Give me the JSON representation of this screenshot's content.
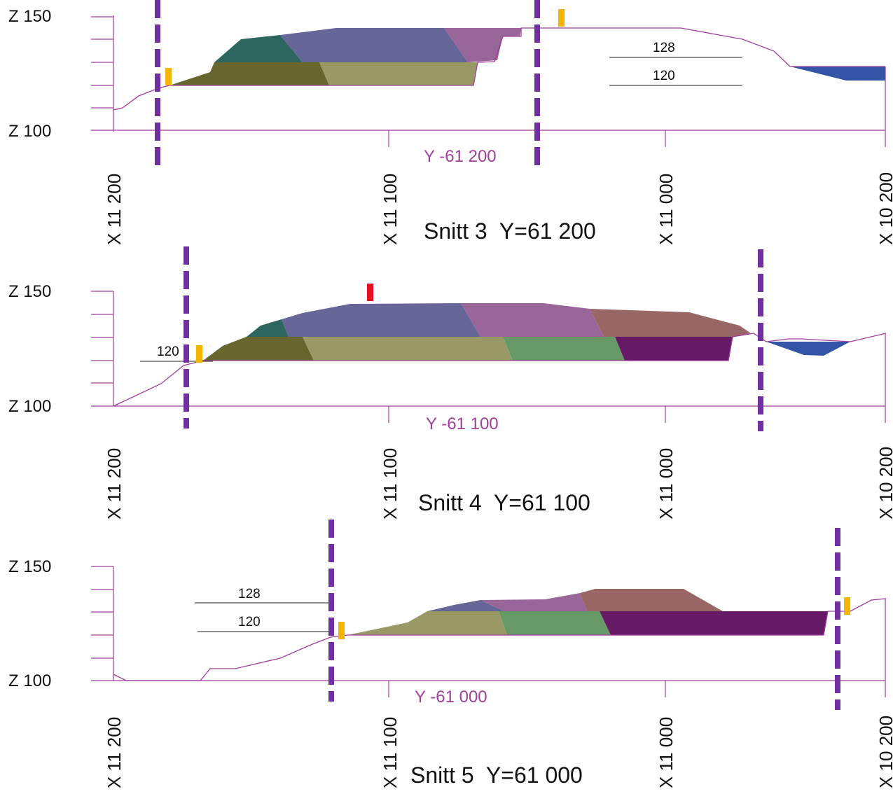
{
  "colors": {
    "purple_line": "#7030A0",
    "magenta_text": "#A0409A",
    "terrain": "#A03C9C",
    "marker_yellow": "#F5B400",
    "marker_red": "#E8101E",
    "fill_dark_olive": "#66662E",
    "fill_olive": "#999966",
    "fill_teal": "#2D665E",
    "fill_blue": "#666699",
    "fill_mauve": "#996699",
    "fill_rose": "#996666",
    "fill_green": "#669966",
    "fill_plum": "#661A66",
    "fill_water": "#3355A8"
  },
  "sections": [
    {
      "title": "Snitt 3  Y=61 200",
      "z_labels": [
        "Z 150",
        "Z 100"
      ],
      "x_labels": [
        "X 11 200",
        "X 11 100",
        "X 11 000",
        "X 10 200"
      ],
      "y_label": "Y -61 200",
      "level_labels": [
        "128",
        "120"
      ]
    },
    {
      "title": "Snitt 4  Y=61 100",
      "z_labels": [
        "Z 150",
        "Z 100"
      ],
      "x_labels": [
        "X 11 200",
        "X 11 100",
        "X 11 000",
        "X 10 200"
      ],
      "y_label": "Y -61 100",
      "level_labels": [
        "120"
      ]
    },
    {
      "title": "Snitt 5  Y=61 000",
      "z_labels": [
        "Z 150",
        "Z 100"
      ],
      "x_labels": [
        "X 11 200",
        "X 11 100",
        "X 11 000",
        "X 10 200"
      ],
      "y_label": "Y -61 000",
      "level_labels": [
        "128",
        "120"
      ]
    }
  ]
}
